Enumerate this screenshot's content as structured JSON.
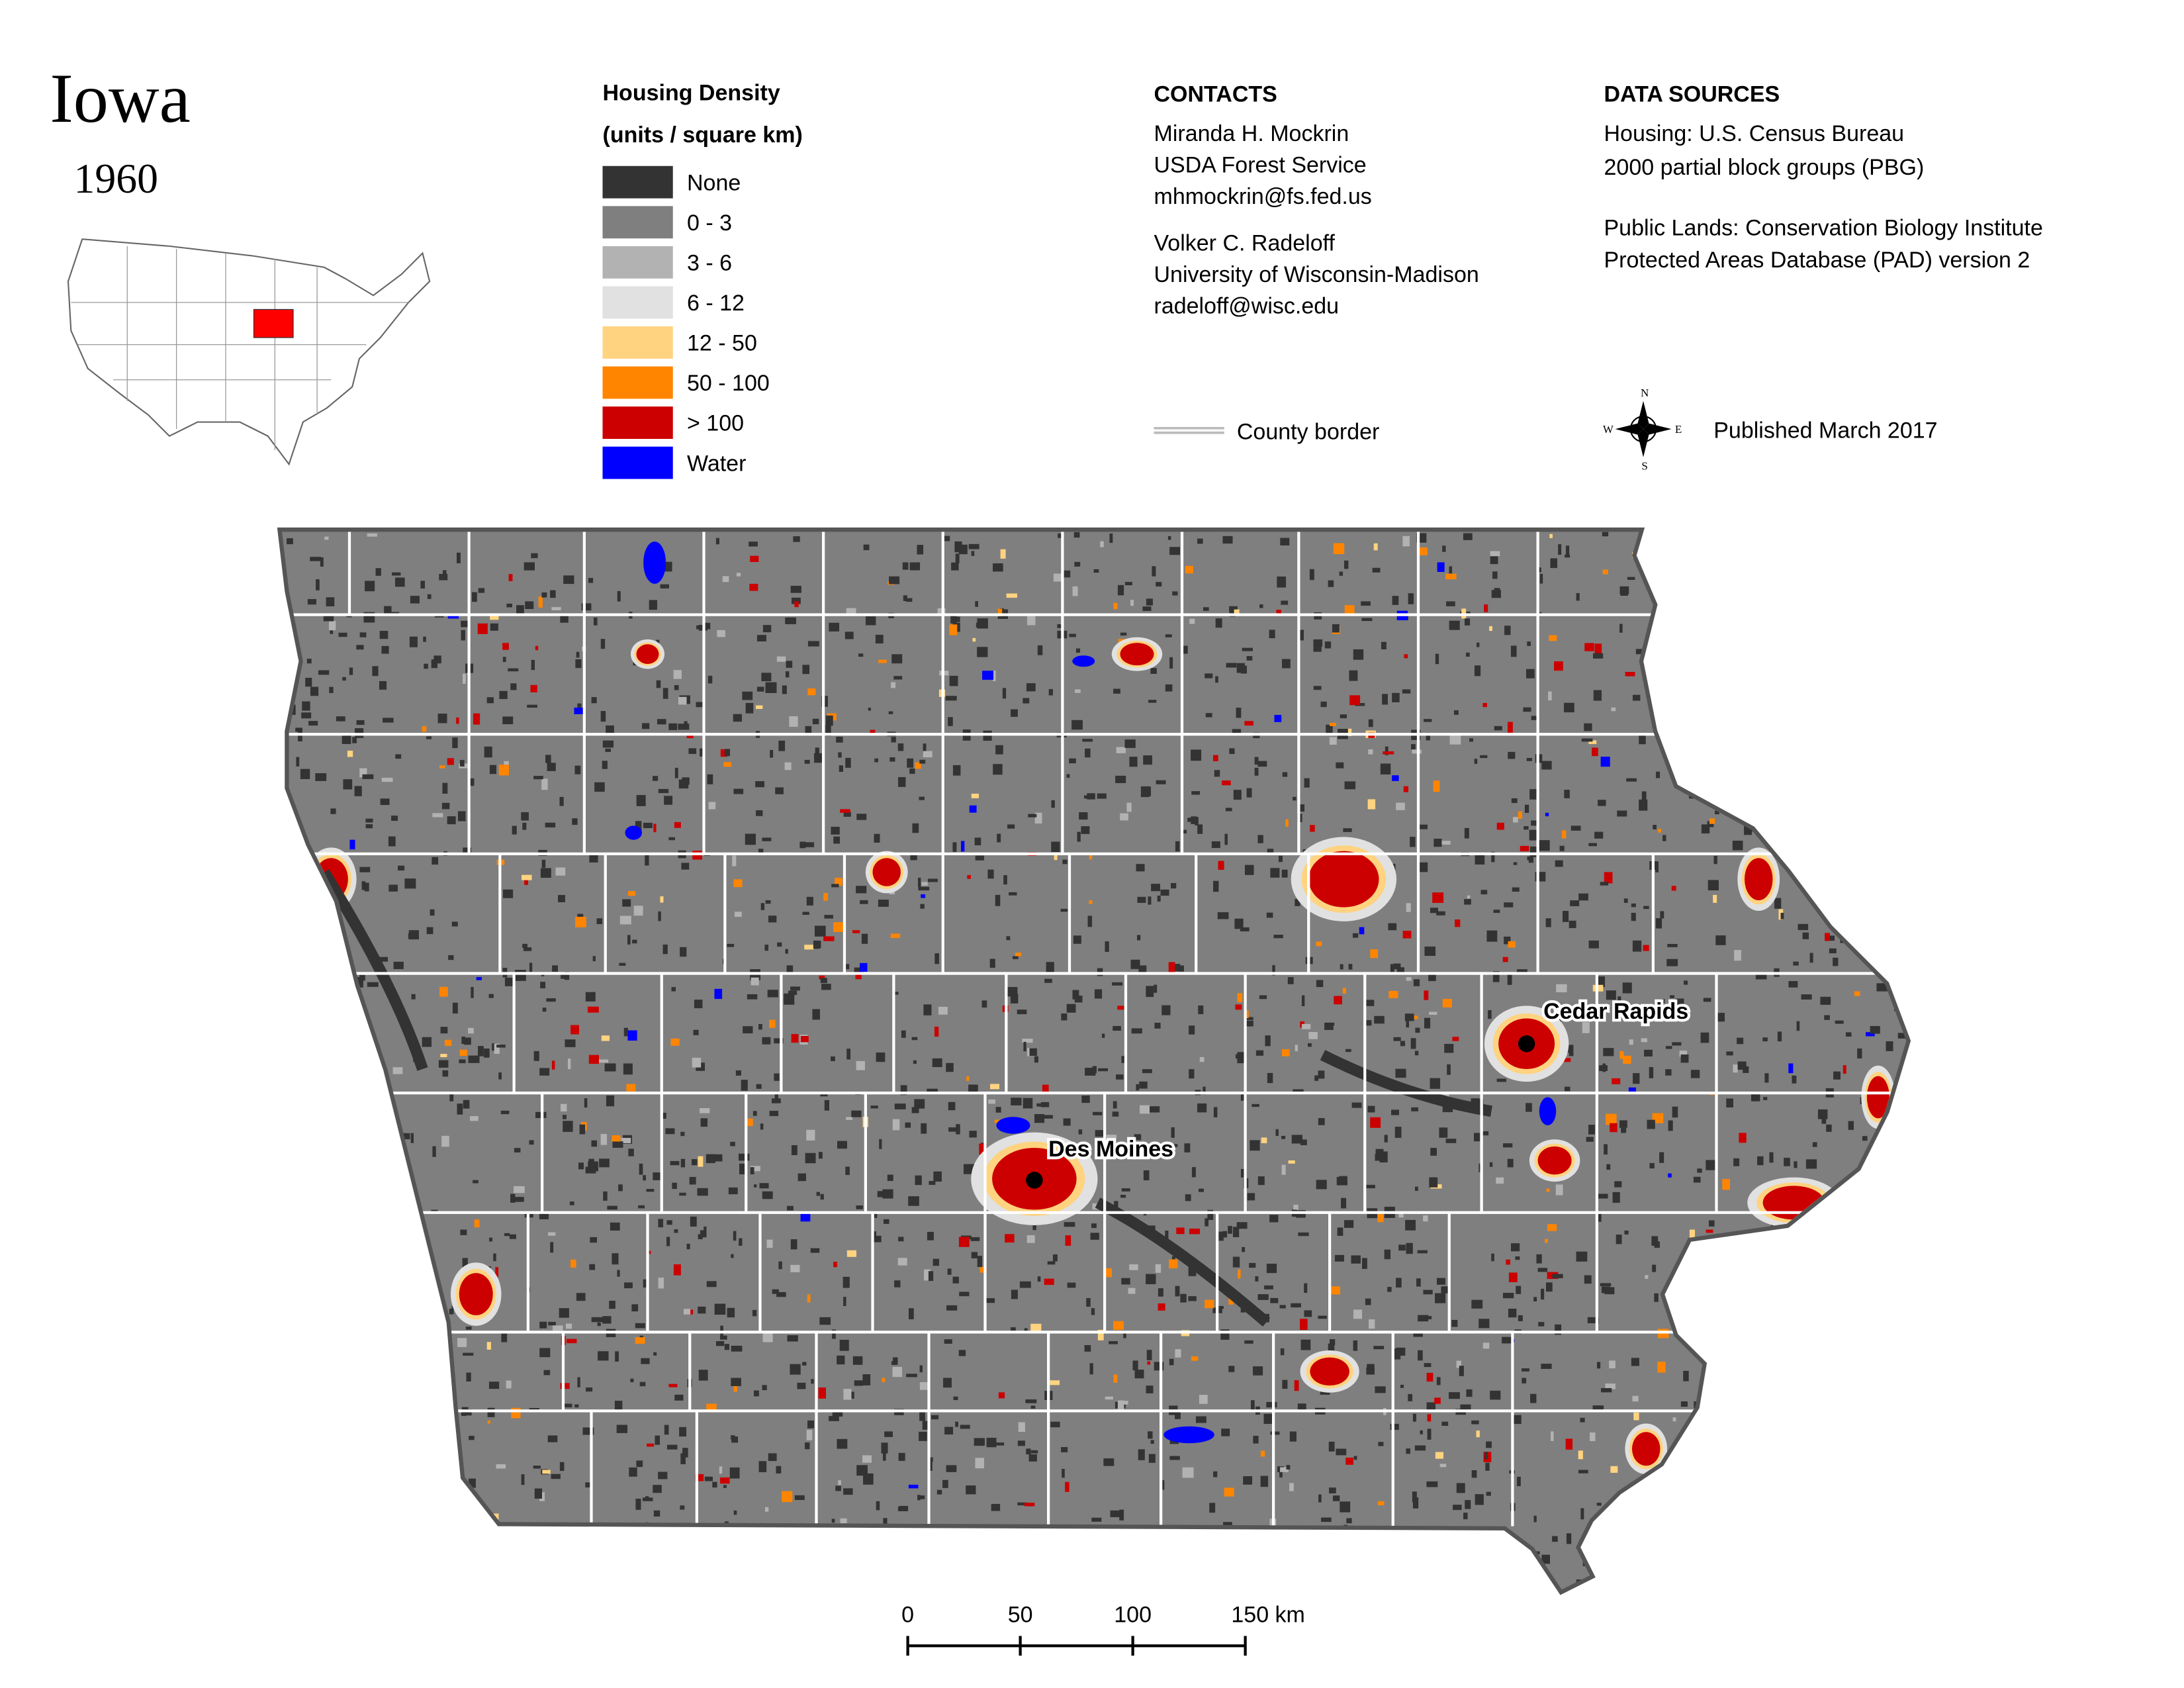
{
  "header": {
    "title": "Iowa",
    "year": "1960"
  },
  "legend": {
    "title": "Housing Density",
    "subtitle": "(units / square km)",
    "items": [
      {
        "label": "None",
        "color": "#333333"
      },
      {
        "label": "0 - 3",
        "color": "#7f7f7f"
      },
      {
        "label": "3 - 6",
        "color": "#b2b2b2"
      },
      {
        "label": "6 - 12",
        "color": "#e1e1e1"
      },
      {
        "label": "12 - 50",
        "color": "#ffd37f"
      },
      {
        "label": "50 - 100",
        "color": "#ff8500"
      },
      {
        "label": "> 100",
        "color": "#cc0000"
      },
      {
        "label": "Water",
        "color": "#0000ff"
      }
    ]
  },
  "contacts": {
    "heading": "CONTACTS",
    "people": [
      [
        "Miranda H. Mockrin",
        "USDA Forest Service",
        "mhmockrin@fs.fed.us"
      ],
      [
        "Volker C. Radeloff",
        "University of Wisconsin-Madison",
        "radeloff@wisc.edu"
      ]
    ]
  },
  "sources": {
    "heading": "DATA SOURCES",
    "lines": [
      "Housing: U.S. Census Bureau",
      "2000 partial block groups (PBG)",
      "Public Lands: Conservation Biology Institute",
      "Protected Areas Database (PAD) version 2"
    ]
  },
  "county_border_label": "County border",
  "compass": [
    "N",
    "E",
    "S",
    "W"
  ],
  "published": "Published March 2017",
  "map": {
    "cities": [
      "Cedar Rapids",
      "Des Moines"
    ]
  },
  "scale": {
    "ticks": [
      0,
      50,
      100,
      {
        "value": 150,
        "label": "150 km"
      }
    ]
  }
}
